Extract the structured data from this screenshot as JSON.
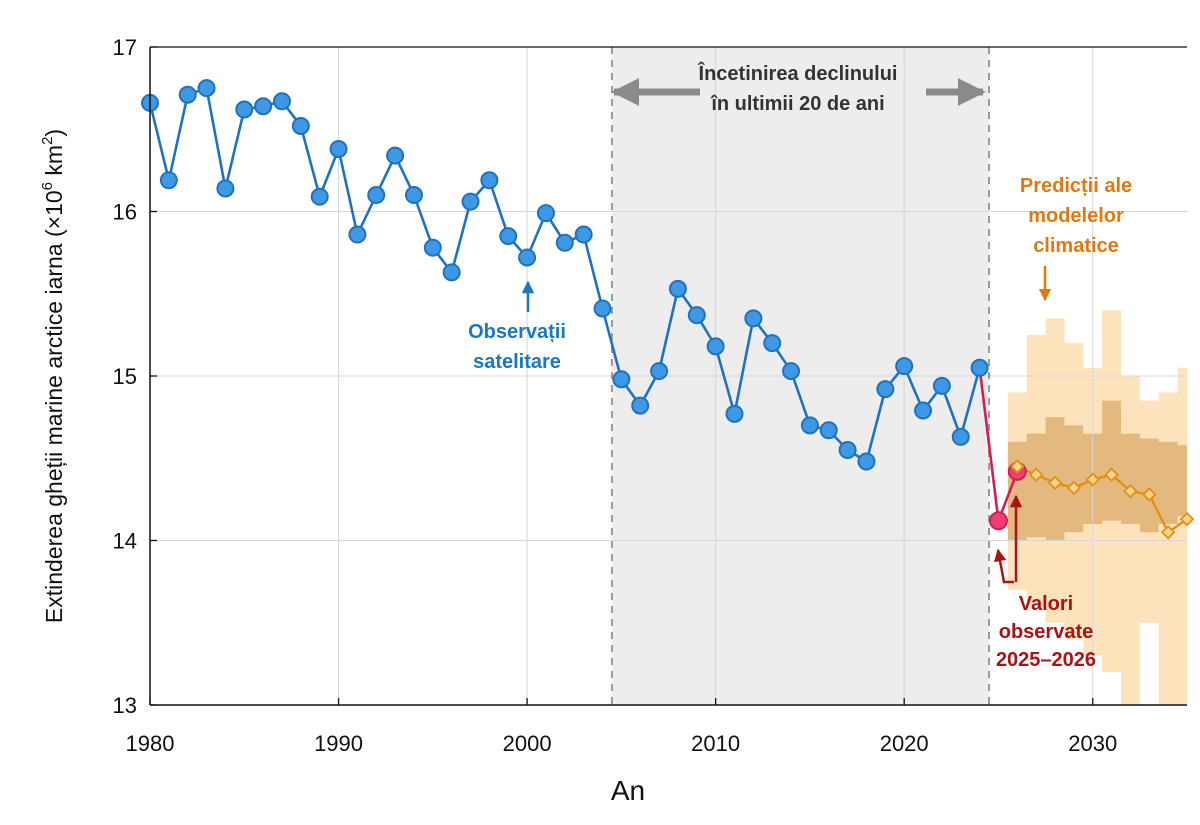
{
  "colors": {
    "observed": "#1f72c2",
    "observed_fill": "#3f98e3",
    "recent_line": "#d21f53",
    "recent_fill": "#f13e6e",
    "prediction_line": "#e19014",
    "prediction_fill": "#fbd38d",
    "prediction_outer_band": "#fde2b8",
    "prediction_inner_band": "#d9ab6b",
    "highlight_region": "#ededed",
    "annot_blue": "#1b78c0",
    "annot_orange": "#e07a10",
    "annot_red": "#a81414",
    "annot_gray": "#333333"
  },
  "chart_data": {
    "type": "line",
    "xlabel": "An",
    "ylabel_main": "Extinderea gheții marine arctice iarna (×10",
    "ylabel_exp6": "6",
    "ylabel_unit": " km",
    "ylabel_exp2": "2",
    "ylabel_close": ")",
    "xlim": [
      1980,
      2035
    ],
    "ylim": [
      13,
      17
    ],
    "xticks": [
      1980,
      1990,
      2000,
      2010,
      2020,
      2030
    ],
    "yticks": [
      13,
      14,
      15,
      16,
      17
    ],
    "grid": true,
    "highlight_range": [
      2004.5,
      2024.5
    ],
    "series": [
      {
        "key": "observed",
        "marker": "circle",
        "x": [
          1980,
          1981,
          1982,
          1983,
          1984,
          1985,
          1986,
          1987,
          1988,
          1989,
          1990,
          1991,
          1992,
          1993,
          1994,
          1995,
          1996,
          1997,
          1998,
          1999,
          2000,
          2001,
          2002,
          2003,
          2004,
          2005,
          2006,
          2007,
          2008,
          2009,
          2010,
          2011,
          2012,
          2013,
          2014,
          2015,
          2016,
          2017,
          2018,
          2019,
          2020,
          2021,
          2022,
          2023,
          2024
        ],
        "values": [
          16.66,
          16.19,
          16.71,
          16.75,
          16.14,
          16.62,
          16.64,
          16.67,
          16.52,
          16.09,
          16.38,
          15.86,
          16.1,
          16.34,
          16.1,
          15.78,
          15.63,
          16.06,
          16.19,
          15.85,
          15.72,
          15.99,
          15.81,
          15.86,
          15.41,
          14.98,
          14.82,
          15.03,
          15.53,
          15.37,
          15.18,
          14.77,
          15.35,
          15.2,
          15.03,
          14.7,
          14.67,
          14.55,
          14.48,
          14.92,
          15.06,
          14.79,
          14.94,
          14.63,
          15.05
        ]
      },
      {
        "key": "recent",
        "marker": "circle",
        "x": [
          2024,
          2025,
          2026
        ],
        "values": [
          15.05,
          14.12,
          14.42
        ]
      },
      {
        "key": "prediction",
        "marker": "diamond",
        "x": [
          2026,
          2027,
          2028,
          2029,
          2030,
          2031,
          2032,
          2033,
          2034,
          2035
        ],
        "values": [
          14.45,
          14.4,
          14.35,
          14.32,
          14.37,
          14.4,
          14.3,
          14.28,
          14.05,
          14.13
        ]
      }
    ],
    "prediction_bands": {
      "years": [
        2026,
        2027,
        2028,
        2029,
        2030,
        2031,
        2032,
        2033,
        2034,
        2035
      ],
      "outer_low": [
        13.7,
        13.6,
        13.5,
        13.4,
        13.3,
        13.2,
        13.0,
        13.5,
        13.0,
        13.0
      ],
      "outer_high": [
        14.9,
        15.25,
        15.35,
        15.2,
        15.05,
        15.4,
        15.0,
        14.85,
        14.9,
        15.05
      ],
      "inner_low": [
        14.0,
        14.02,
        14.0,
        14.05,
        14.1,
        14.12,
        14.1,
        14.05,
        14.1,
        14.15
      ],
      "inner_high": [
        14.6,
        14.65,
        14.75,
        14.7,
        14.65,
        14.85,
        14.65,
        14.62,
        14.6,
        14.58
      ]
    },
    "annotations": {
      "decline_line1": "Încetinirea declinului",
      "decline_line2": "în ultimii 20 de ani",
      "observations_line1": "Observații",
      "observations_line2": "satelitare",
      "predictions_line1": "Predicții ale",
      "predictions_line2": "modelelor",
      "predictions_line3": "climatice",
      "observed_line1": "Valori",
      "observed_line2": "observate",
      "observed_line3": "2025–2026"
    }
  }
}
